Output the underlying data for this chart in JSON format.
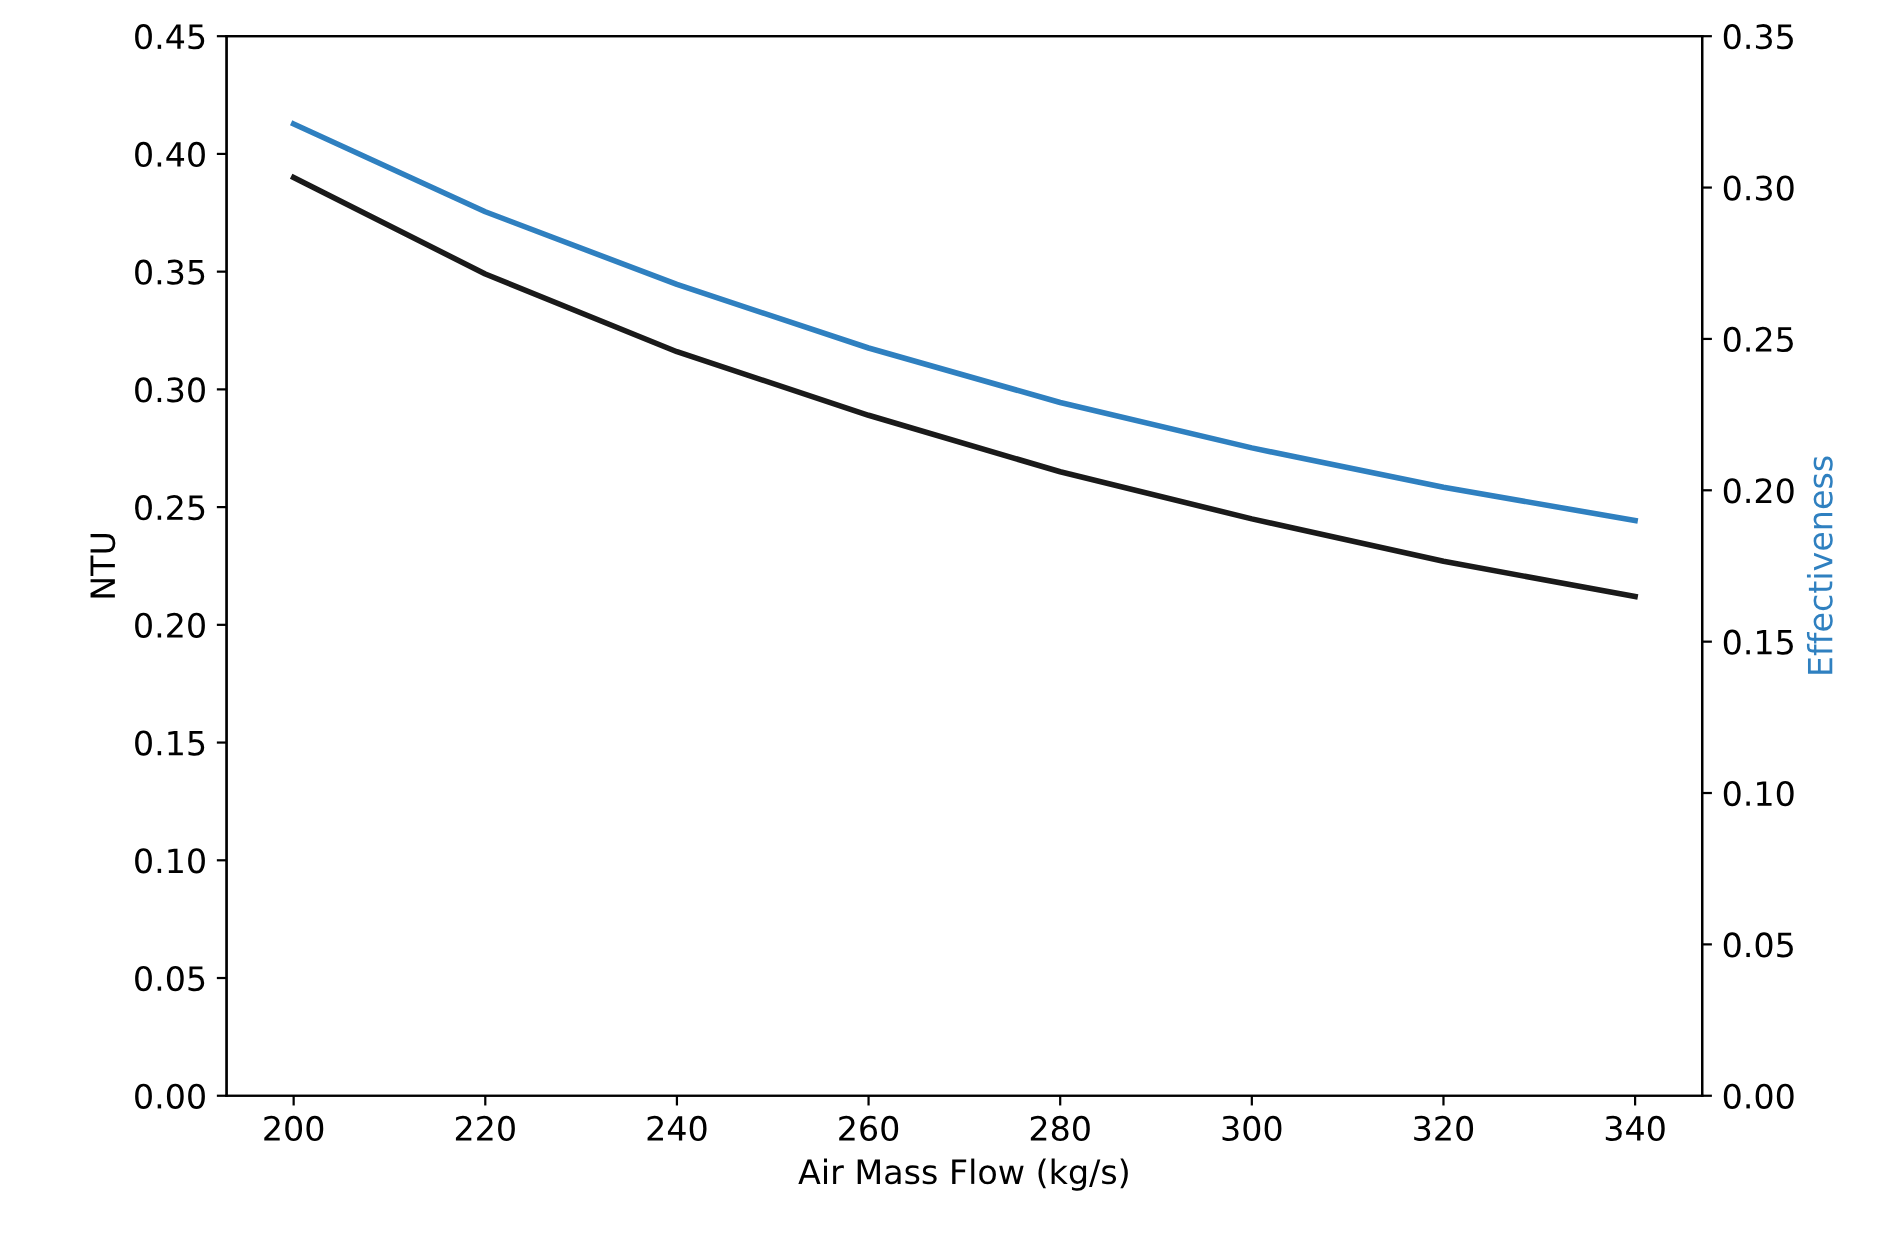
{
  "chart_data": {
    "type": "line",
    "xlabel": "Air Mass Flow (kg/s)",
    "ylabel": "NTU",
    "y2label": "Effectiveness",
    "x": [
      200,
      220,
      240,
      260,
      280,
      300,
      320,
      340
    ],
    "series": [
      {
        "color": "#1a1a1a",
        "values": [
          0.39,
          0.349,
          0.316,
          0.289,
          0.265,
          0.245,
          0.227,
          0.212
        ]
      },
      {
        "color": "#2f80c0",
        "axis": "y2",
        "values": [
          0.321,
          0.292,
          0.268,
          0.247,
          0.229,
          0.214,
          0.201,
          0.19
        ]
      }
    ],
    "xlim": [
      193,
      347
    ],
    "xticks": [
      200,
      220,
      240,
      260,
      280,
      300,
      320,
      340
    ],
    "ylim": [
      0,
      0.45
    ],
    "yticks": [
      {
        "value": 0,
        "label": "0.00"
      },
      {
        "value": 0.05,
        "label": "0.05"
      },
      {
        "value": 0.1,
        "label": "0.10"
      },
      {
        "value": 0.15,
        "label": "0.15"
      },
      {
        "value": 0.2,
        "label": "0.20"
      },
      {
        "value": 0.25,
        "label": "0.25"
      },
      {
        "value": 0.3,
        "label": "0.30"
      },
      {
        "value": 0.35,
        "label": "0.35"
      },
      {
        "value": 0.4,
        "label": "0.40"
      },
      {
        "value": 0.45,
        "label": "0.45"
      }
    ],
    "y2lim": [
      0,
      0.35
    ],
    "y2ticks": [
      {
        "value": 0,
        "label": "0.00"
      },
      {
        "value": 0.05,
        "label": "0.05"
      },
      {
        "value": 0.1,
        "label": "0.10"
      },
      {
        "value": 0.15,
        "label": "0.15"
      },
      {
        "value": 0.2,
        "label": "0.20"
      },
      {
        "value": 0.25,
        "label": "0.25"
      },
      {
        "value": 0.3,
        "label": "0.30"
      },
      {
        "value": 0.35,
        "label": "0.35"
      }
    ],
    "marker": "none",
    "line_style": "solid"
  }
}
